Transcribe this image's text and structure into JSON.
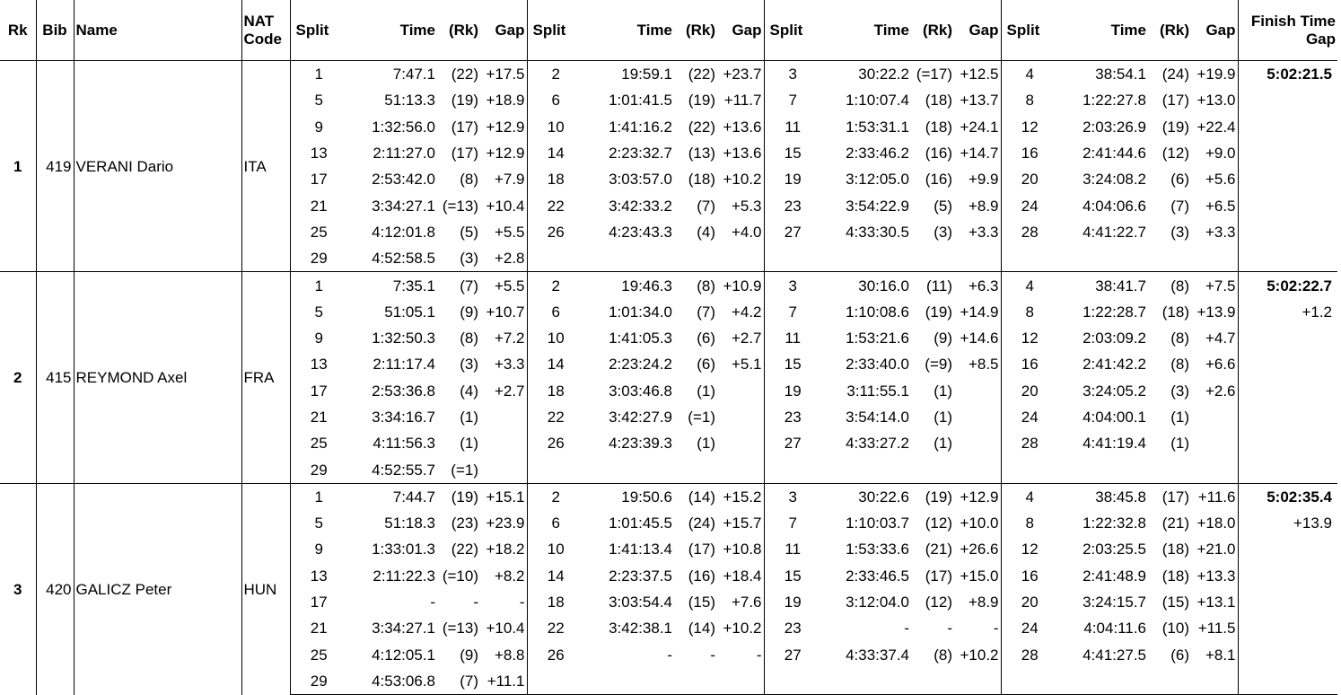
{
  "headers": {
    "rk": "Rk",
    "bib": "Bib",
    "name": "Name",
    "nat_line1": "NAT",
    "nat_line2": "Code",
    "split": "Split",
    "time": "Time",
    "rank": "(Rk)",
    "gap": "Gap",
    "finish_line1": "Finish Time",
    "finish_line2": "Gap"
  },
  "athletes": [
    {
      "rank": "1",
      "bib": "419",
      "name": "VERANI Dario",
      "nat": "ITA",
      "finish_time": "5:02:21.5",
      "finish_gap": "",
      "rows": [
        [
          [
            "1",
            "7:47.1",
            "(22)",
            "+17.5"
          ],
          [
            "2",
            "19:59.1",
            "(22)",
            "+23.7"
          ],
          [
            "3",
            "30:22.2",
            "(=17)",
            "+12.5"
          ],
          [
            "4",
            "38:54.1",
            "(24)",
            "+19.9"
          ]
        ],
        [
          [
            "5",
            "51:13.3",
            "(19)",
            "+18.9"
          ],
          [
            "6",
            "1:01:41.5",
            "(19)",
            "+11.7"
          ],
          [
            "7",
            "1:10:07.4",
            "(18)",
            "+13.7"
          ],
          [
            "8",
            "1:22:27.8",
            "(17)",
            "+13.0"
          ]
        ],
        [
          [
            "9",
            "1:32:56.0",
            "(17)",
            "+12.9"
          ],
          [
            "10",
            "1:41:16.2",
            "(22)",
            "+13.6"
          ],
          [
            "11",
            "1:53:31.1",
            "(18)",
            "+24.1"
          ],
          [
            "12",
            "2:03:26.9",
            "(19)",
            "+22.4"
          ]
        ],
        [
          [
            "13",
            "2:11:27.0",
            "(17)",
            "+12.9"
          ],
          [
            "14",
            "2:23:32.7",
            "(13)",
            "+13.6"
          ],
          [
            "15",
            "2:33:46.2",
            "(16)",
            "+14.7"
          ],
          [
            "16",
            "2:41:44.6",
            "(12)",
            "+9.0"
          ]
        ],
        [
          [
            "17",
            "2:53:42.0",
            "(8)",
            "+7.9"
          ],
          [
            "18",
            "3:03:57.0",
            "(18)",
            "+10.2"
          ],
          [
            "19",
            "3:12:05.0",
            "(16)",
            "+9.9"
          ],
          [
            "20",
            "3:24:08.2",
            "(6)",
            "+5.6"
          ]
        ],
        [
          [
            "21",
            "3:34:27.1",
            "(=13)",
            "+10.4"
          ],
          [
            "22",
            "3:42:33.2",
            "(7)",
            "+5.3"
          ],
          [
            "23",
            "3:54:22.9",
            "(5)",
            "+8.9"
          ],
          [
            "24",
            "4:04:06.6",
            "(7)",
            "+6.5"
          ]
        ],
        [
          [
            "25",
            "4:12:01.8",
            "(5)",
            "+5.5"
          ],
          [
            "26",
            "4:23:43.3",
            "(4)",
            "+4.0"
          ],
          [
            "27",
            "4:33:30.5",
            "(3)",
            "+3.3"
          ],
          [
            "28",
            "4:41:22.7",
            "(3)",
            "+3.3"
          ]
        ],
        [
          [
            "29",
            "4:52:58.5",
            "(3)",
            "+2.8"
          ],
          [
            "",
            "",
            "",
            ""
          ],
          [
            "",
            "",
            "",
            ""
          ],
          [
            "",
            "",
            "",
            ""
          ]
        ]
      ]
    },
    {
      "rank": "2",
      "bib": "415",
      "name": "REYMOND Axel",
      "nat": "FRA",
      "finish_time": "5:02:22.7",
      "finish_gap": "+1.2",
      "rows": [
        [
          [
            "1",
            "7:35.1",
            "(7)",
            "+5.5"
          ],
          [
            "2",
            "19:46.3",
            "(8)",
            "+10.9"
          ],
          [
            "3",
            "30:16.0",
            "(11)",
            "+6.3"
          ],
          [
            "4",
            "38:41.7",
            "(8)",
            "+7.5"
          ]
        ],
        [
          [
            "5",
            "51:05.1",
            "(9)",
            "+10.7"
          ],
          [
            "6",
            "1:01:34.0",
            "(7)",
            "+4.2"
          ],
          [
            "7",
            "1:10:08.6",
            "(19)",
            "+14.9"
          ],
          [
            "8",
            "1:22:28.7",
            "(18)",
            "+13.9"
          ]
        ],
        [
          [
            "9",
            "1:32:50.3",
            "(8)",
            "+7.2"
          ],
          [
            "10",
            "1:41:05.3",
            "(6)",
            "+2.7"
          ],
          [
            "11",
            "1:53:21.6",
            "(9)",
            "+14.6"
          ],
          [
            "12",
            "2:03:09.2",
            "(8)",
            "+4.7"
          ]
        ],
        [
          [
            "13",
            "2:11:17.4",
            "(3)",
            "+3.3"
          ],
          [
            "14",
            "2:23:24.2",
            "(6)",
            "+5.1"
          ],
          [
            "15",
            "2:33:40.0",
            "(=9)",
            "+8.5"
          ],
          [
            "16",
            "2:41:42.2",
            "(8)",
            "+6.6"
          ]
        ],
        [
          [
            "17",
            "2:53:36.8",
            "(4)",
            "+2.7"
          ],
          [
            "18",
            "3:03:46.8",
            "(1)",
            ""
          ],
          [
            "19",
            "3:11:55.1",
            "(1)",
            ""
          ],
          [
            "20",
            "3:24:05.2",
            "(3)",
            "+2.6"
          ]
        ],
        [
          [
            "21",
            "3:34:16.7",
            "(1)",
            ""
          ],
          [
            "22",
            "3:42:27.9",
            "(=1)",
            ""
          ],
          [
            "23",
            "3:54:14.0",
            "(1)",
            ""
          ],
          [
            "24",
            "4:04:00.1",
            "(1)",
            ""
          ]
        ],
        [
          [
            "25",
            "4:11:56.3",
            "(1)",
            ""
          ],
          [
            "26",
            "4:23:39.3",
            "(1)",
            ""
          ],
          [
            "27",
            "4:33:27.2",
            "(1)",
            ""
          ],
          [
            "28",
            "4:41:19.4",
            "(1)",
            ""
          ]
        ],
        [
          [
            "29",
            "4:52:55.7",
            "(=1)",
            ""
          ],
          [
            "",
            "",
            "",
            ""
          ],
          [
            "",
            "",
            "",
            ""
          ],
          [
            "",
            "",
            "",
            ""
          ]
        ]
      ]
    },
    {
      "rank": "3",
      "bib": "420",
      "name": "GALICZ Peter",
      "nat": "HUN",
      "finish_time": "5:02:35.4",
      "finish_gap": "+13.9",
      "rows": [
        [
          [
            "1",
            "7:44.7",
            "(19)",
            "+15.1"
          ],
          [
            "2",
            "19:50.6",
            "(14)",
            "+15.2"
          ],
          [
            "3",
            "30:22.6",
            "(19)",
            "+12.9"
          ],
          [
            "4",
            "38:45.8",
            "(17)",
            "+11.6"
          ]
        ],
        [
          [
            "5",
            "51:18.3",
            "(23)",
            "+23.9"
          ],
          [
            "6",
            "1:01:45.5",
            "(24)",
            "+15.7"
          ],
          [
            "7",
            "1:10:03.7",
            "(12)",
            "+10.0"
          ],
          [
            "8",
            "1:22:32.8",
            "(21)",
            "+18.0"
          ]
        ],
        [
          [
            "9",
            "1:33:01.3",
            "(22)",
            "+18.2"
          ],
          [
            "10",
            "1:41:13.4",
            "(17)",
            "+10.8"
          ],
          [
            "11",
            "1:53:33.6",
            "(21)",
            "+26.6"
          ],
          [
            "12",
            "2:03:25.5",
            "(18)",
            "+21.0"
          ]
        ],
        [
          [
            "13",
            "2:11:22.3",
            "(=10)",
            "+8.2"
          ],
          [
            "14",
            "2:23:37.5",
            "(16)",
            "+18.4"
          ],
          [
            "15",
            "2:33:46.5",
            "(17)",
            "+15.0"
          ],
          [
            "16",
            "2:41:48.9",
            "(18)",
            "+13.3"
          ]
        ],
        [
          [
            "17",
            "-",
            "-",
            "-"
          ],
          [
            "18",
            "3:03:54.4",
            "(15)",
            "+7.6"
          ],
          [
            "19",
            "3:12:04.0",
            "(12)",
            "+8.9"
          ],
          [
            "20",
            "3:24:15.7",
            "(15)",
            "+13.1"
          ]
        ],
        [
          [
            "21",
            "3:34:27.1",
            "(=13)",
            "+10.4"
          ],
          [
            "22",
            "3:42:38.1",
            "(14)",
            "+10.2"
          ],
          [
            "23",
            "-",
            "-",
            "-"
          ],
          [
            "24",
            "4:04:11.6",
            "(10)",
            "+11.5"
          ]
        ],
        [
          [
            "25",
            "4:12:05.1",
            "(9)",
            "+8.8"
          ],
          [
            "26",
            "-",
            "-",
            "-"
          ],
          [
            "27",
            "4:33:37.4",
            "(8)",
            "+10.2"
          ],
          [
            "28",
            "4:41:27.5",
            "(6)",
            "+8.1"
          ]
        ],
        [
          [
            "29",
            "4:53:06.8",
            "(7)",
            "+11.1"
          ],
          [
            "",
            "",
            "",
            ""
          ],
          [
            "",
            "",
            "",
            ""
          ],
          [
            "",
            "",
            "",
            ""
          ]
        ]
      ]
    }
  ]
}
